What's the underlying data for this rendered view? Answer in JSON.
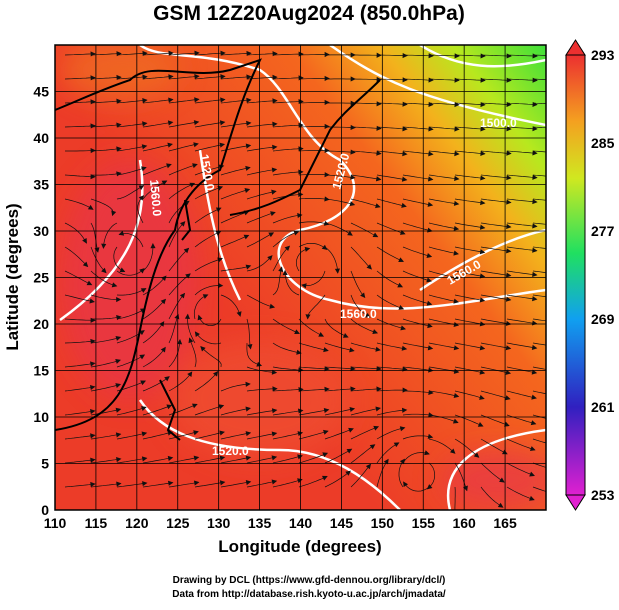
{
  "title": "GSM 12Z20Aug2024 (850.0hPa)",
  "x_axis": {
    "label": "Longitude (degrees)",
    "lim": [
      110,
      170
    ],
    "ticks": [
      110,
      115,
      120,
      125,
      130,
      135,
      140,
      145,
      150,
      155,
      160,
      165
    ]
  },
  "y_axis": {
    "label": "Latitude  (degrees)",
    "lim": [
      0,
      50
    ],
    "ticks": [
      0,
      5,
      10,
      15,
      20,
      25,
      30,
      35,
      40,
      45
    ]
  },
  "colorbar": {
    "lim": [
      253,
      293
    ],
    "ticks": [
      253,
      261,
      269,
      277,
      285,
      293
    ]
  },
  "contour_labels": [
    "1520.0",
    "1560.0",
    "1520.0",
    "1560.0",
    "1520.0",
    "1500.0",
    "1560.0"
  ],
  "credits": [
    "Drawing by DCL (https://www.gfd-dennou.org/library/dcl/)",
    "Data from http://database.rish.kyoto-u.ac.jp/arch/jmadata/"
  ]
}
